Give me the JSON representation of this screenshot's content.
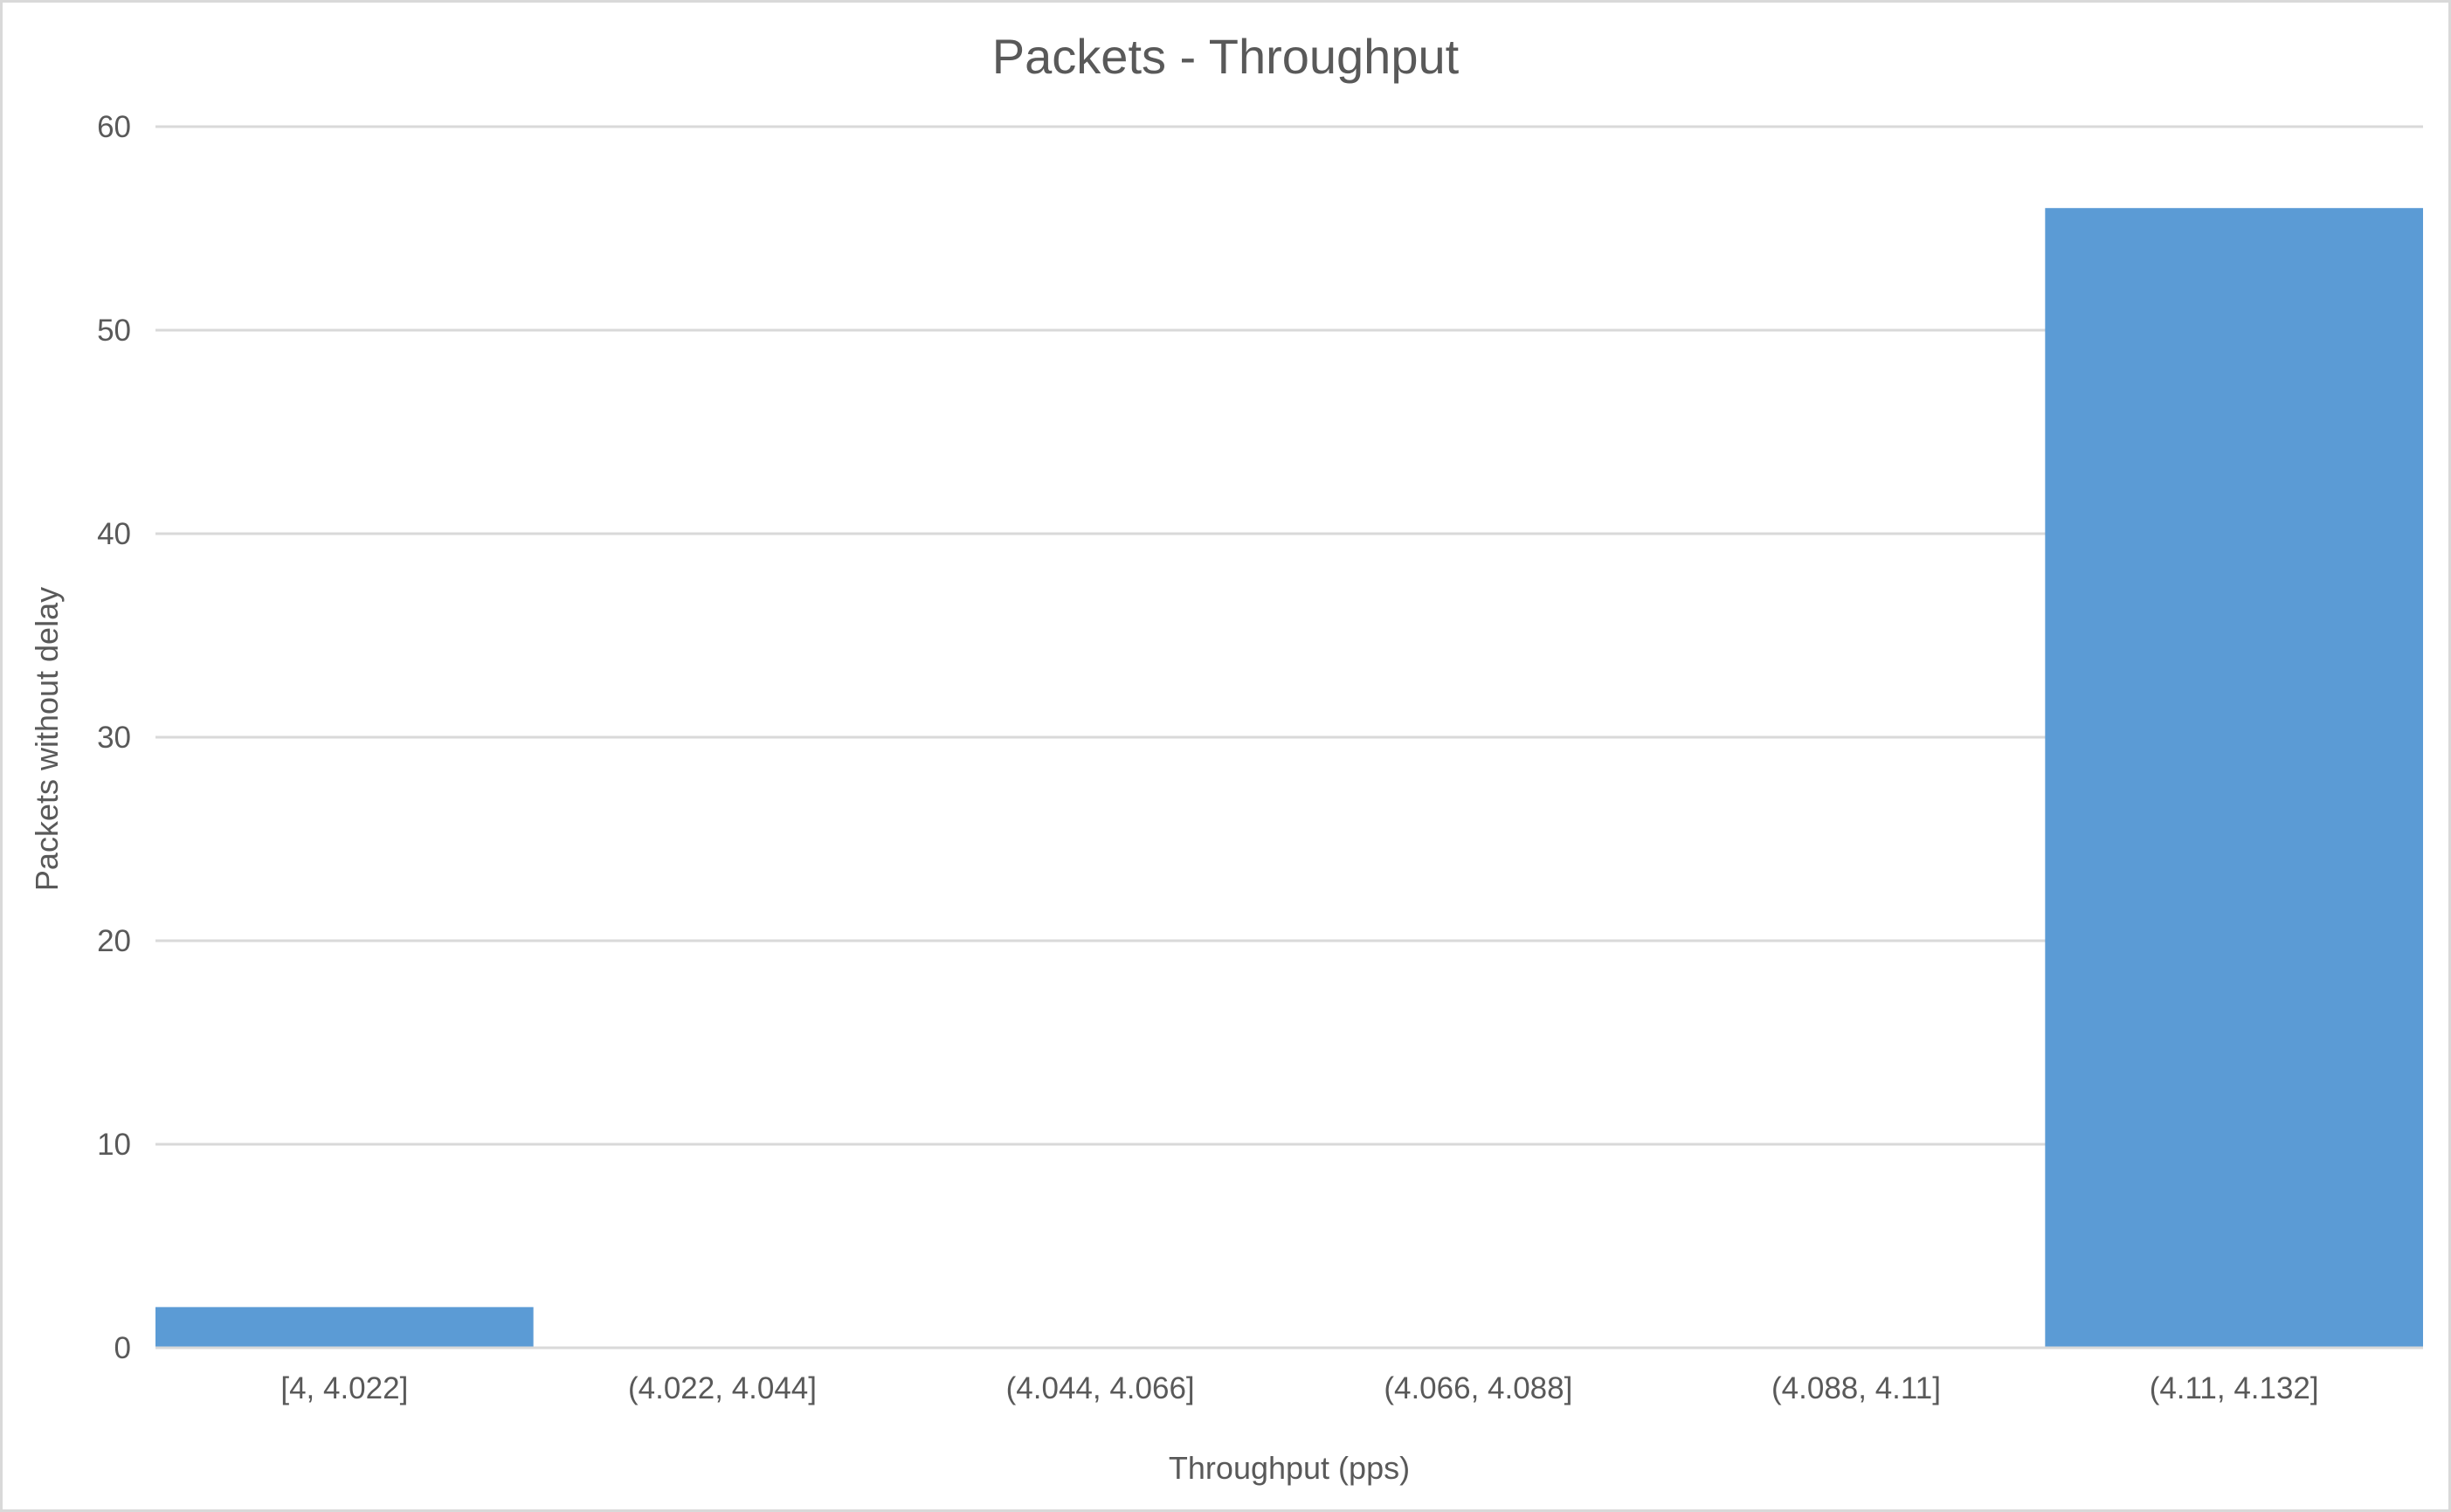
{
  "chart_data": {
    "type": "bar",
    "title": "Packets - Throughput",
    "xlabel": "Throughput (pps)",
    "ylabel": "Packets without delay",
    "categories": [
      "[4, 4.022]",
      "(4.022, 4.044]",
      "(4.044, 4.066]",
      "(4.066, 4.088]",
      "(4.088, 4.11]",
      "(4.11, 4.132]"
    ],
    "values": [
      2,
      0,
      0,
      0,
      0,
      56
    ],
    "ylim": [
      0,
      60
    ],
    "yticks": [
      0,
      10,
      20,
      30,
      40,
      50,
      60
    ],
    "grid": true,
    "legend": "none",
    "bar_color": "#5b9bd5",
    "grid_color": "#d9d9d9"
  }
}
